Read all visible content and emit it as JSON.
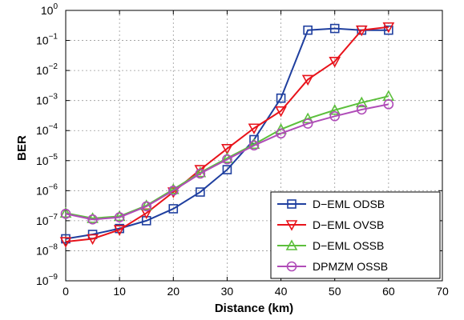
{
  "chart_data": {
    "type": "line",
    "xlabel": "Distance (km)",
    "ylabel": "BER",
    "xlim": [
      0,
      70
    ],
    "ylim_exponents": [
      -9,
      0
    ],
    "ylog": true,
    "grid": true,
    "legend_position": "bottom-right",
    "x_ticks": [
      "0",
      "10",
      "20",
      "30",
      "40",
      "50",
      "60",
      "70"
    ],
    "y_tick_base": "10",
    "y_tick_exponents": [
      "0",
      "−1",
      "−2",
      "−3",
      "−4",
      "−5",
      "−6",
      "−7",
      "−8",
      "−9"
    ],
    "series": [
      {
        "name": "D−EML ODSB",
        "color": "#1f3f9f",
        "marker": "square",
        "x": [
          0,
          5,
          10,
          15,
          20,
          25,
          30,
          35,
          40,
          45,
          50,
          55,
          60
        ],
        "y": [
          2.5e-08,
          3.5e-08,
          5.5e-08,
          1e-07,
          2.5e-07,
          9e-07,
          5e-06,
          5e-05,
          0.0012,
          0.22,
          0.25,
          0.22,
          0.22
        ]
      },
      {
        "name": "D−EML OVSB",
        "color": "#e8131b",
        "marker": "triangle-down",
        "x": [
          0,
          5,
          10,
          15,
          20,
          25,
          30,
          35,
          40,
          45,
          50,
          55,
          60
        ],
        "y": [
          2e-08,
          2.5e-08,
          5e-08,
          1.8e-07,
          9e-07,
          5e-06,
          2.5e-05,
          0.00012,
          0.00045,
          0.005,
          0.02,
          0.22,
          0.28
        ]
      },
      {
        "name": "D−EML OSSB",
        "color": "#5cbf3c",
        "marker": "triangle-up",
        "x": [
          0,
          5,
          10,
          15,
          20,
          25,
          30,
          35,
          40,
          45,
          50,
          55,
          60
        ],
        "y": [
          1.8e-07,
          1.2e-07,
          1.4e-07,
          3.2e-07,
          1.1e-06,
          4e-06,
          1.2e-05,
          3.5e-05,
          0.00011,
          0.00025,
          0.00048,
          0.00085,
          0.0014
        ]
      },
      {
        "name": "DPMZM OSSB",
        "color": "#b04cb8",
        "marker": "circle",
        "x": [
          0,
          5,
          10,
          15,
          20,
          25,
          30,
          35,
          40,
          45,
          50,
          55,
          60
        ],
        "y": [
          1.7e-07,
          1.1e-07,
          1.3e-07,
          3e-07,
          1e-06,
          3.7e-06,
          1.1e-05,
          3.2e-05,
          8e-05,
          0.00017,
          0.0003,
          0.0005,
          0.00075
        ]
      }
    ]
  }
}
